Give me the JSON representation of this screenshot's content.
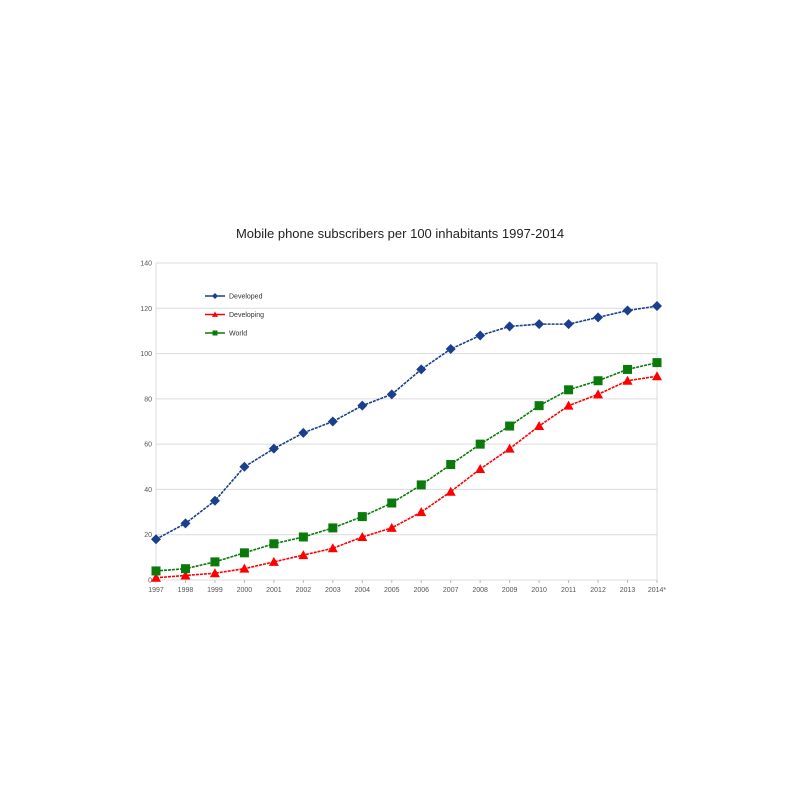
{
  "chart_data": {
    "type": "line",
    "title": "Mobile phone subscribers per 100 inhabitants 1997-2014",
    "xlabel": "",
    "ylabel": "",
    "ylim": [
      0,
      140
    ],
    "yticks": [
      0,
      20,
      40,
      60,
      80,
      100,
      120,
      140
    ],
    "grid": true,
    "legend_position": "upper-left-inside",
    "categories": [
      "1997",
      "1998",
      "1999",
      "2000",
      "2001",
      "2002",
      "2003",
      "2004",
      "2005",
      "2006",
      "2007",
      "2008",
      "2009",
      "2010",
      "2011",
      "2012",
      "2013",
      "2014*"
    ],
    "series": [
      {
        "name": "Developed",
        "color": "#1a3f8c",
        "marker": "diamond",
        "values": [
          18,
          25,
          35,
          50,
          58,
          65,
          70,
          77,
          82,
          93,
          102,
          108,
          112,
          113,
          113,
          116,
          119,
          121
        ]
      },
      {
        "name": "Developing",
        "color": "#ff0000",
        "marker": "triangle",
        "values": [
          1,
          2,
          3,
          5,
          8,
          11,
          14,
          19,
          23,
          30,
          39,
          49,
          58,
          68,
          77,
          82,
          88,
          90
        ]
      },
      {
        "name": "World",
        "color": "#0a7a0a",
        "marker": "square",
        "values": [
          4,
          5,
          8,
          12,
          16,
          19,
          23,
          28,
          34,
          42,
          51,
          60,
          68,
          77,
          84,
          88,
          93,
          96
        ]
      }
    ]
  }
}
